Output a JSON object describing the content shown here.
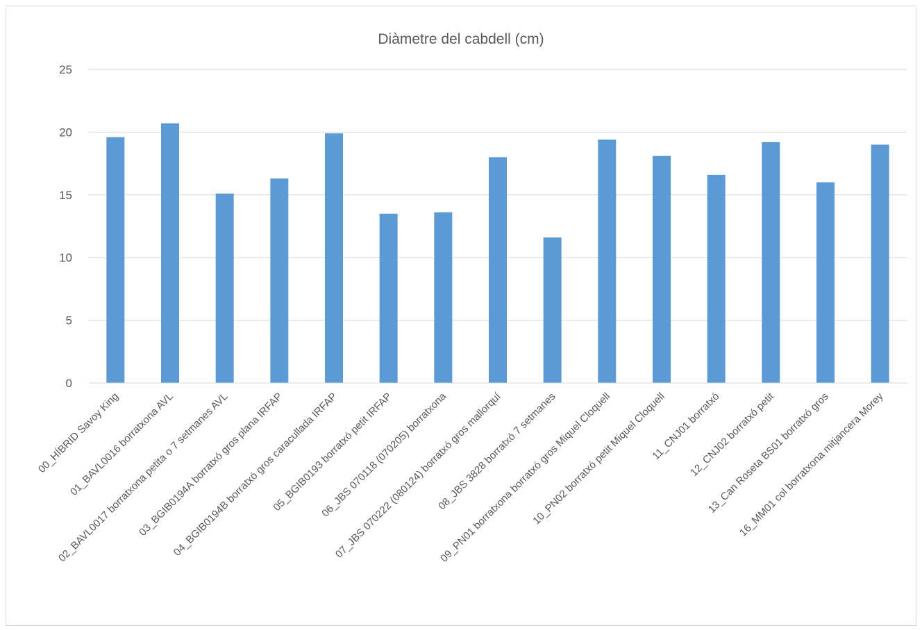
{
  "chart_data": {
    "type": "bar",
    "title": "Diàmetre del cabdell (cm)",
    "xlabel": "",
    "ylabel": "",
    "ylim": [
      0,
      25
    ],
    "yticks": [
      "0",
      "5",
      "10",
      "15",
      "20",
      "25"
    ],
    "grid": true,
    "legend": "none",
    "bar_color": "#5b9bd5",
    "categories": [
      "00_HÍBRID Savoy King",
      "01_BAVL0016 borratxona AVL",
      "02_BAVL0017 borratxona petita o 7 setmanes AVL",
      "03_BGIB0194A borratxó gros plana IRFAP",
      "04_BGIB0194B borratxó gros caracullada IRFAP",
      "05_BGIB0193 borratxó petit IRFAP",
      "06_JBS 070118 (070205) borratxona",
      "07_JBS 070222 (080124) borratxó gros mallorquí",
      "08_JBS 3828 borratxó 7 setmanes",
      "09_PN01 borratxona borratxó gros Miquel Cloquell",
      "10_PN02 borratxó petit Miquel Cloquell",
      "11_CNJ01 borratxó",
      "12_CNJ02 borratxó petit",
      "13_Can Roseta BS01 borratxó gros",
      "16_MM01 col borratxona mitjancera Morey"
    ],
    "values": [
      19.6,
      20.7,
      15.1,
      16.3,
      19.9,
      13.5,
      13.6,
      18.0,
      11.6,
      19.4,
      18.1,
      16.6,
      19.2,
      16.0,
      19.0
    ]
  }
}
